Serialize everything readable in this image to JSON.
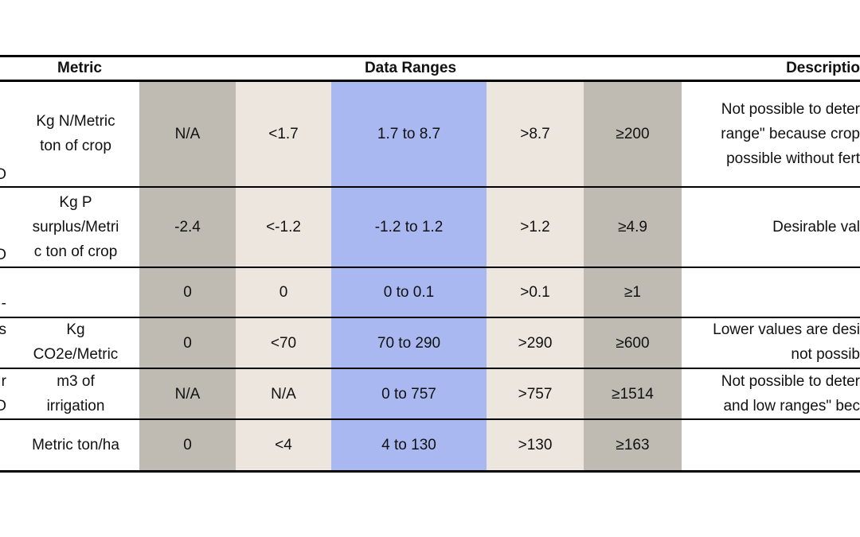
{
  "table": {
    "header": {
      "metric": "Metric",
      "data_ranges": "Data Ranges",
      "description": "Descriptio"
    },
    "rows": [
      {
        "left": [
          "O"
        ],
        "metric": [
          "Kg N/Metric",
          "ton of crop"
        ],
        "ranges": [
          "N/A",
          "<1.7",
          "1.7 to 8.7",
          ">8.7",
          "≥200"
        ],
        "description": [
          "Not possible to deter",
          "range\" because crop",
          "possible without fert"
        ]
      },
      {
        "left": [
          "O"
        ],
        "metric": [
          "Kg P",
          "surplus/Metri",
          "c ton of crop"
        ],
        "ranges": [
          "-2.4",
          "<-1.2",
          "-1.2 to 1.2",
          ">1.2",
          "≥4.9"
        ],
        "description": [
          "Desirable val"
        ]
      },
      {
        "left": [
          "n -"
        ],
        "metric": [],
        "ranges": [
          "0",
          "0",
          "0 to 0.1",
          ">0.1",
          "≥1"
        ],
        "description": []
      },
      {
        "left": [
          "s"
        ],
        "metric": [
          "Kg",
          "CO2e/Metric"
        ],
        "ranges": [
          "0",
          "<70",
          "70 to 290",
          ">290",
          "≥600"
        ],
        "description": [
          "Lower values are desi",
          "not possib"
        ]
      },
      {
        "left": [
          "r",
          "O"
        ],
        "metric": [
          "m3 of",
          "irrigation"
        ],
        "ranges": [
          "N/A",
          "N/A",
          "0 to 757",
          ">757",
          "≥1514"
        ],
        "description": [
          "Not possible to deter",
          "and low ranges\" bec"
        ]
      },
      {
        "left": [],
        "metric": [
          "Metric ton/ha"
        ],
        "ranges": [
          "0",
          "<4",
          "4  to 130",
          ">130",
          "≥163"
        ],
        "description": []
      }
    ]
  }
}
